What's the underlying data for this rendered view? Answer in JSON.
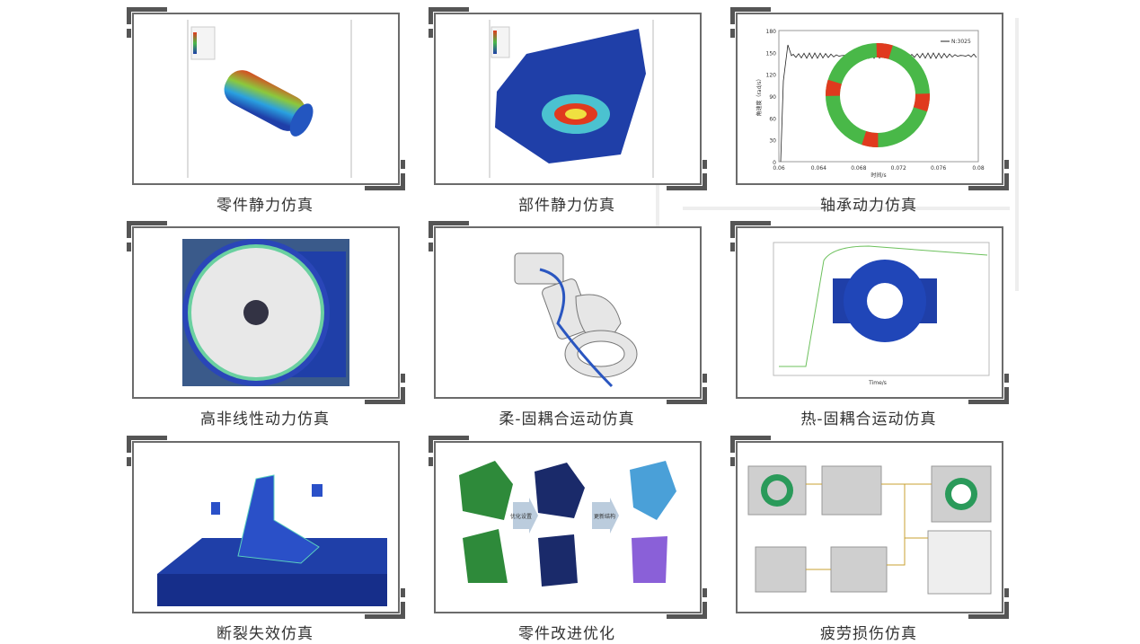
{
  "cards": [
    {
      "caption": "零件静力仿真",
      "icon": "cylinder-stress-contour-image"
    },
    {
      "caption": "部件静力仿真",
      "icon": "bracket-stress-contour-image"
    },
    {
      "caption": "轴承动力仿真",
      "icon": "bearing-dynamics-chart-image"
    },
    {
      "caption": "高非线性动力仿真",
      "icon": "wheel-nonlinear-image"
    },
    {
      "caption": "柔-固耦合运动仿真",
      "icon": "flexible-rigid-assembly-image"
    },
    {
      "caption": "热-固耦合运动仿真",
      "icon": "thermal-chart-image"
    },
    {
      "caption": "断裂失效仿真",
      "icon": "fracture-bracket-image"
    },
    {
      "caption": "零件改进优化",
      "icon": "part-optimization-image"
    },
    {
      "caption": "疲劳损伤仿真",
      "icon": "fatigue-workflow-image"
    }
  ],
  "bearing_chart": {
    "yticks": [
      "0",
      "30",
      "60",
      "90",
      "120",
      "150",
      "180"
    ],
    "xticks": [
      "0.06",
      "0.064",
      "0.068",
      "0.072",
      "0.076",
      "0.08"
    ],
    "ylabel": "角速度（rad/s）",
    "xlabel": "时间/s",
    "legend": "N:3025"
  },
  "thermal_chart": {
    "xlabel": "Time/s"
  },
  "optimization": {
    "step1": "优化设置",
    "step2": "更新结构"
  },
  "colors": {
    "frame": "#6b6b6b",
    "caption": "#333333",
    "fe_blue": "#1f3fa8",
    "fe_red": "#e03a1e",
    "fe_green": "#49b848"
  }
}
